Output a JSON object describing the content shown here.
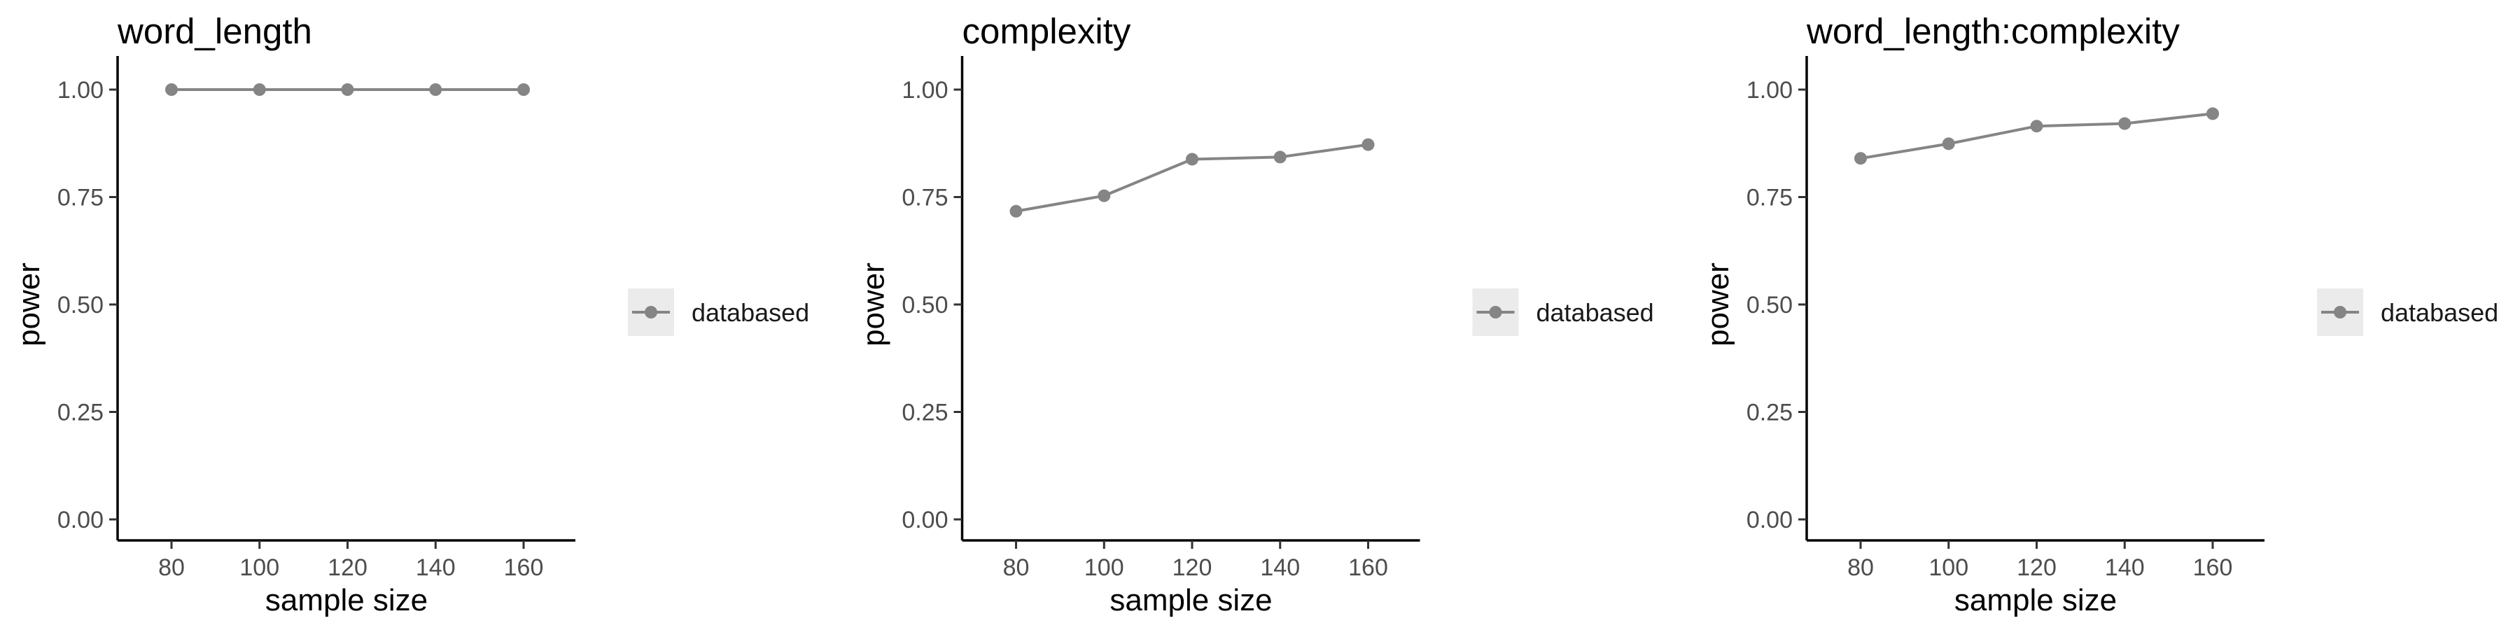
{
  "chart_data": [
    {
      "type": "line",
      "title": "word_length",
      "xlabel": "sample size",
      "ylabel": "power",
      "x": [
        80,
        100,
        120,
        140,
        160
      ],
      "xticks": [
        "80",
        "100",
        "120",
        "140",
        "160"
      ],
      "yticks": [
        "0.00",
        "0.25",
        "0.50",
        "0.75",
        "1.00"
      ],
      "xlim": [
        68,
        172
      ],
      "ylim": [
        0,
        1
      ],
      "series": [
        {
          "name": "databased",
          "values": [
            1.0,
            1.0,
            1.0,
            1.0,
            1.0
          ]
        }
      ],
      "legend": {
        "label": "databased",
        "position": "right"
      },
      "grid": false
    },
    {
      "type": "line",
      "title": "complexity",
      "xlabel": "sample size",
      "ylabel": "power",
      "x": [
        80,
        100,
        120,
        140,
        160
      ],
      "xticks": [
        "80",
        "100",
        "120",
        "140",
        "160"
      ],
      "yticks": [
        "0.00",
        "0.25",
        "0.50",
        "0.75",
        "1.00"
      ],
      "xlim": [
        68,
        172
      ],
      "ylim": [
        0,
        1
      ],
      "series": [
        {
          "name": "databased",
          "values": [
            0.717,
            0.753,
            0.838,
            0.843,
            0.872
          ]
        }
      ],
      "legend": {
        "label": "databased",
        "position": "right"
      },
      "grid": false
    },
    {
      "type": "line",
      "title": "word_length:complexity",
      "xlabel": "sample size",
      "ylabel": "power",
      "x": [
        80,
        100,
        120,
        140,
        160
      ],
      "xticks": [
        "80",
        "100",
        "120",
        "140",
        "160"
      ],
      "yticks": [
        "0.00",
        "0.25",
        "0.50",
        "0.75",
        "1.00"
      ],
      "xlim": [
        68,
        172
      ],
      "ylim": [
        0,
        1
      ],
      "series": [
        {
          "name": "databased",
          "values": [
            0.84,
            0.874,
            0.915,
            0.921,
            0.944
          ]
        }
      ],
      "legend": {
        "label": "databased",
        "position": "right"
      },
      "grid": false
    }
  ],
  "colors": {
    "series": "#858585",
    "axis": "#000000",
    "tick_label": "#4d4d4d",
    "legend_key_bg": "#ebebeb",
    "background": "#ffffff"
  }
}
